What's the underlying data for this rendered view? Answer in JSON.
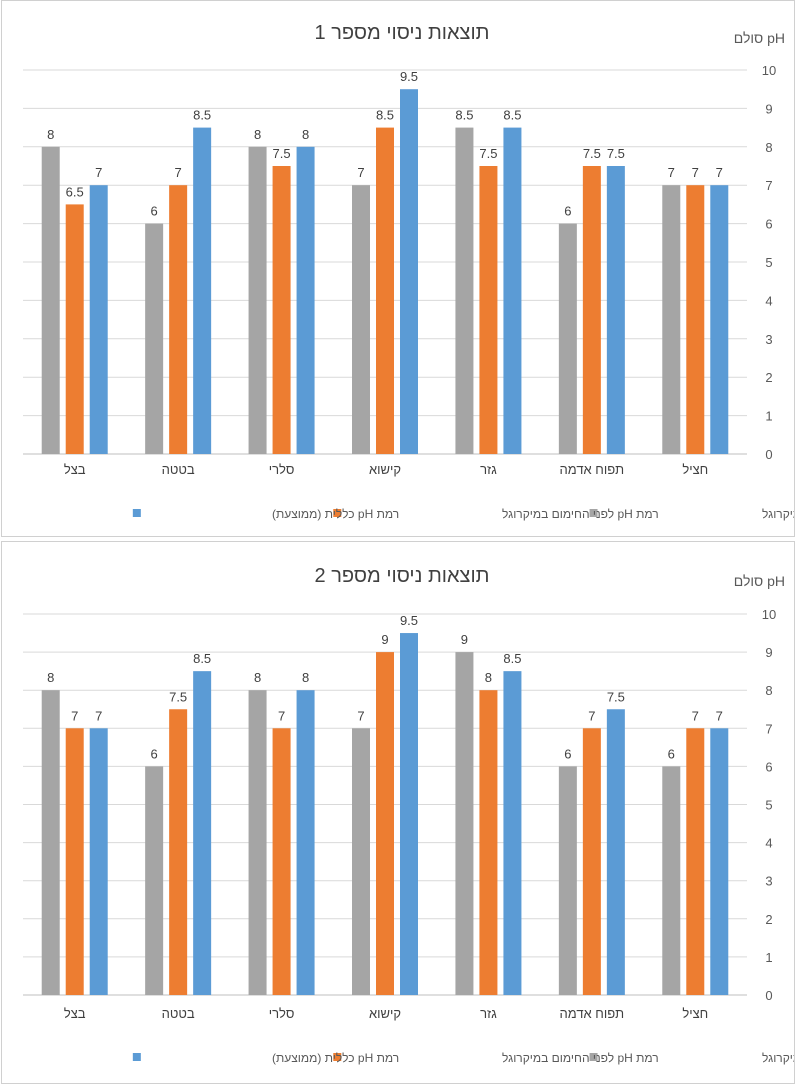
{
  "chart_data": [
    {
      "type": "bar",
      "title": "תוצאות ניסוי מספר 1",
      "ylabel": "סולם pH",
      "ylim": [
        0,
        10
      ],
      "yticks": [
        0,
        1,
        2,
        3,
        4,
        5,
        6,
        7,
        8,
        9,
        10
      ],
      "grid": true,
      "legend_position": "bottom",
      "direction": "rtl",
      "categories": [
        "חציל",
        "תפוח אדמה",
        "גזר",
        "קישוא",
        "סלרי",
        "בטטה",
        "בצל"
      ],
      "series": [
        {
          "name": "רמת pH אחרי החימום במיקרוגל",
          "color": "#a5a5a5",
          "values": [
            7,
            6,
            8.5,
            7,
            8,
            6,
            8
          ]
        },
        {
          "name": "רמת pH לפני החימום במיקרוגל",
          "color": "#ed7d31",
          "values": [
            7,
            7.5,
            7.5,
            8.5,
            7.5,
            7,
            6.5
          ]
        },
        {
          "name": "רמת pH כללית (ממוצעת)",
          "color": "#5b9bd5",
          "values": [
            7,
            7.5,
            8.5,
            9.5,
            8,
            8.5,
            7
          ]
        }
      ]
    },
    {
      "type": "bar",
      "title": "תוצאות ניסוי מספר 2",
      "ylabel": "סולם pH",
      "ylim": [
        0,
        10
      ],
      "yticks": [
        0,
        1,
        2,
        3,
        4,
        5,
        6,
        7,
        8,
        9,
        10
      ],
      "grid": true,
      "legend_position": "bottom",
      "direction": "rtl",
      "categories": [
        "חציל",
        "תפוח אדמה",
        "גזר",
        "קישוא",
        "סלרי",
        "בטטה",
        "בצל"
      ],
      "series": [
        {
          "name": "רמת pH אחרי החימום במיקרוגל",
          "color": "#a5a5a5",
          "values": [
            6,
            6,
            9,
            7,
            8,
            6,
            8
          ]
        },
        {
          "name": "רמת pH לפני החימום במיקרוגל",
          "color": "#ed7d31",
          "values": [
            7,
            7,
            8,
            9,
            7,
            7.5,
            7
          ]
        },
        {
          "name": "רמת pH כללית (ממוצעת)",
          "color": "#5b9bd5",
          "values": [
            7,
            7.5,
            8.5,
            9.5,
            8,
            8.5,
            7
          ]
        }
      ]
    }
  ]
}
